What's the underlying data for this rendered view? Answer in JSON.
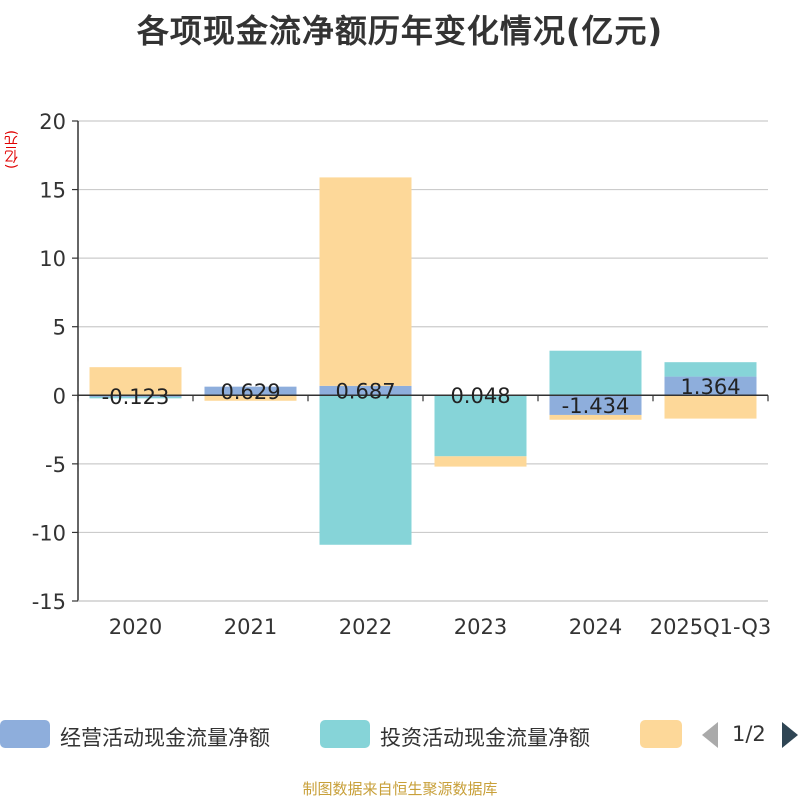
{
  "title": "各项现金流净额历年变化情况(亿元)",
  "unit": "(亿元)",
  "source": "制图数据来自恒生聚源数据库",
  "legend": {
    "items": [
      {
        "name": "经营活动现金流量净额",
        "color": "#8eaedc"
      },
      {
        "name": "投资活动现金流量净额",
        "color": "#86d4d8"
      },
      {
        "name": "",
        "color": "#fdd899"
      }
    ],
    "pager": "1/2"
  },
  "chart_data": {
    "type": "bar",
    "stacked": true,
    "categories": [
      "2020",
      "2021",
      "2022",
      "2023",
      "2024",
      "2025Q1-Q3"
    ],
    "ylim": [
      -15,
      20
    ],
    "yticks": [
      20,
      15,
      10,
      5,
      0,
      -5,
      -10,
      -15
    ],
    "ytick_labels": [
      "20",
      "15",
      "10",
      "5",
      "0",
      "-5",
      "-10",
      "-15"
    ],
    "grid": true,
    "series": [
      {
        "name": "经营活动现金流量净额",
        "color": "#8eaedc",
        "values": [
          -0.123,
          0.629,
          0.687,
          0.048,
          -1.434,
          1.364
        ],
        "labels": [
          "-0.123",
          "0.629",
          "0.687",
          "0.048",
          "-1.434",
          "1.364"
        ]
      },
      {
        "name": "投资活动现金流量净额",
        "color": "#86d4d8",
        "values": [
          -0.1,
          -0.05,
          -10.9,
          -4.45,
          3.25,
          1.05
        ]
      },
      {
        "name": "",
        "color": "#fdd899",
        "values": [
          2.05,
          -0.35,
          15.2,
          -0.75,
          -0.35,
          -1.7
        ]
      }
    ]
  }
}
